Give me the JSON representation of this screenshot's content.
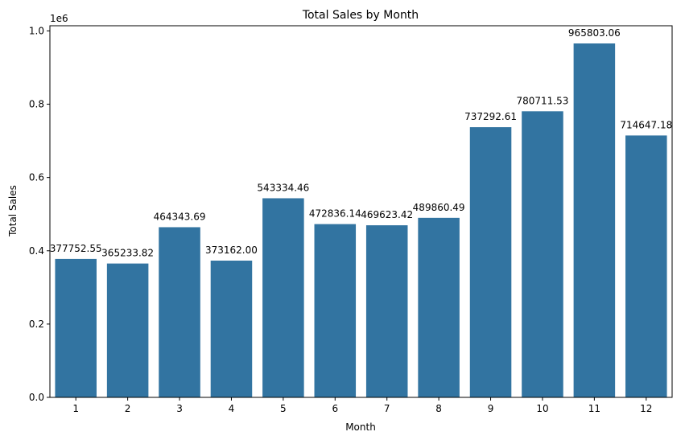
{
  "chart_data": {
    "type": "bar",
    "title": "Total Sales by Month",
    "xlabel": "Month",
    "ylabel": "Total Sales",
    "y_offset_label": "1e6",
    "categories": [
      "1",
      "2",
      "3",
      "4",
      "5",
      "6",
      "7",
      "8",
      "9",
      "10",
      "11",
      "12"
    ],
    "values": [
      377752.55,
      365233.82,
      464343.69,
      373162.0,
      543334.46,
      472836.14,
      469623.42,
      489860.49,
      737292.61,
      780711.53,
      965803.06,
      714647.18
    ],
    "data_labels": [
      "377752.55",
      "365233.82",
      "464343.69",
      "373162.00",
      "543334.46",
      "472836.14",
      "469623.42",
      "489860.49",
      "737292.61",
      "780711.53",
      "965803.06",
      "714647.18"
    ],
    "ylim": [
      0,
      1014093.21
    ],
    "yticks": [
      0,
      200000,
      400000,
      600000,
      800000,
      1000000
    ],
    "ytick_labels": [
      "0.0",
      "0.2",
      "0.4",
      "0.6",
      "0.8",
      "1.0"
    ],
    "bar_color": "#3274a1",
    "grid": false,
    "legend": "none"
  }
}
